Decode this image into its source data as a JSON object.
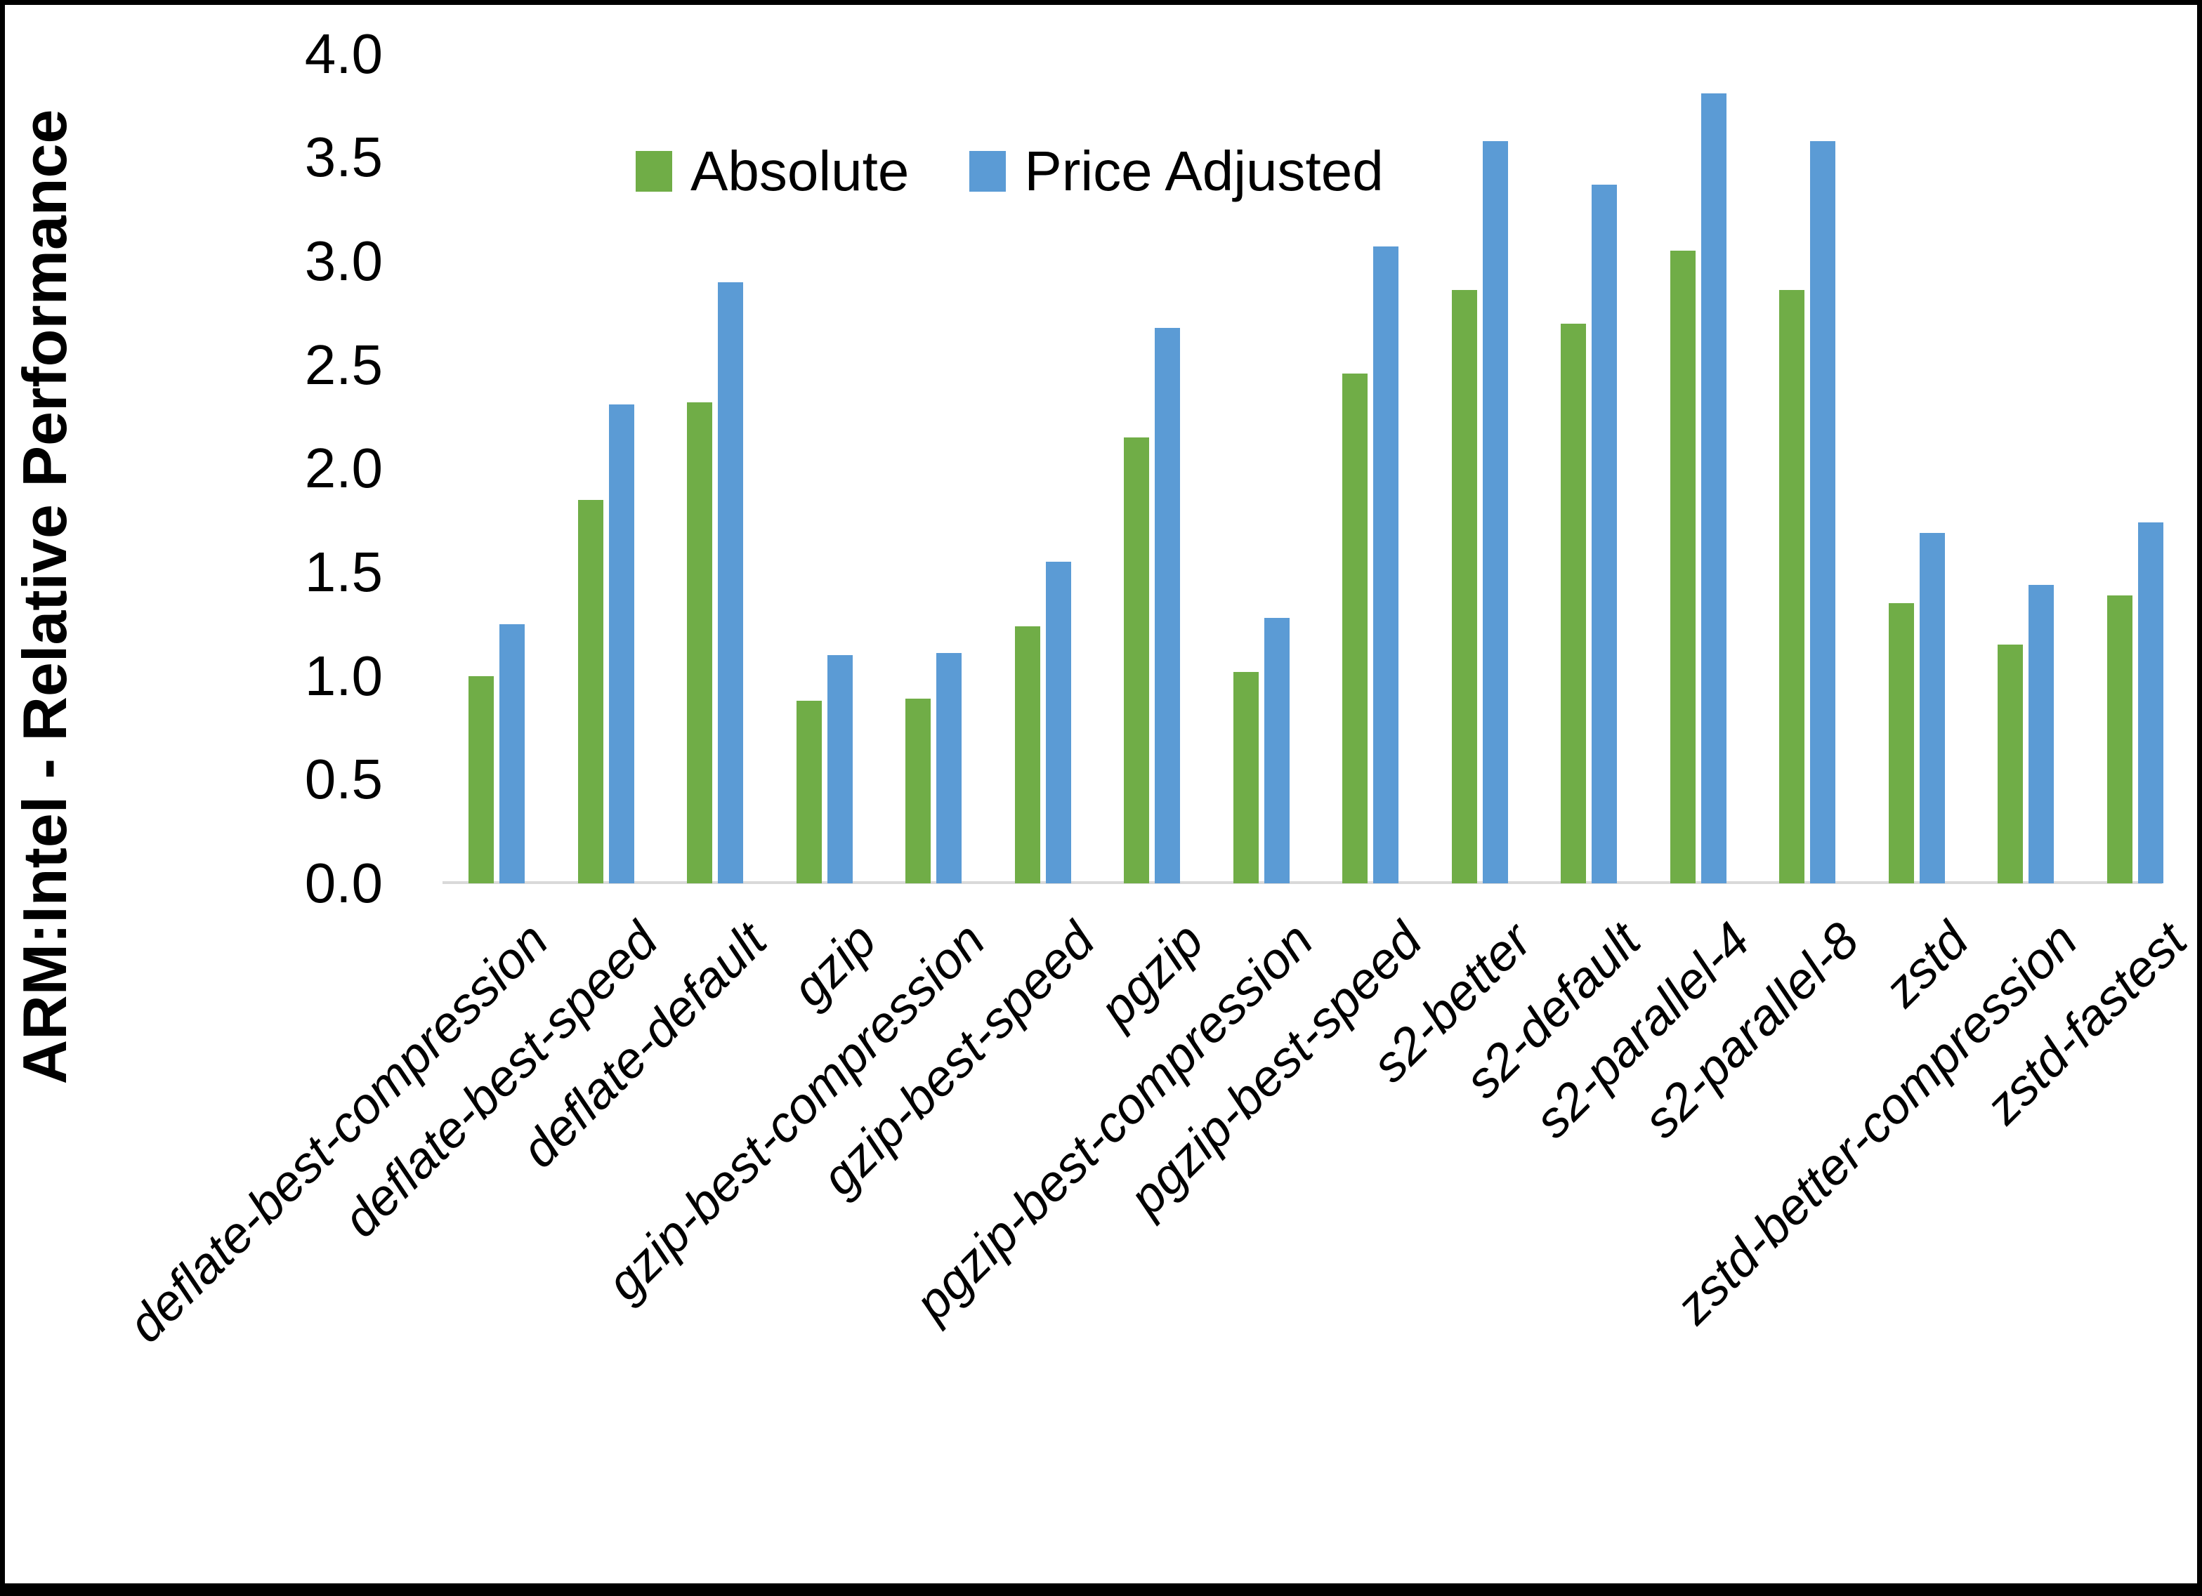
{
  "chart_data": {
    "type": "bar",
    "title": "",
    "y_axis_title": "ARM:Intel - Relative Performance",
    "categories": [
      "deflate-best-compression",
      "deflate-best-speed",
      "deflate-default",
      "gzip",
      "gzip-best-compression",
      "gzip-best-speed",
      "pgzip",
      "pgzip-best-compression",
      "pgzip-best-speed",
      "s2-better",
      "s2-default",
      "s2-parallel-4",
      "s2-parallel-8",
      "zstd",
      "zstd-better-compression",
      "zstd-fastest"
    ],
    "series": [
      {
        "name": "Absolute",
        "color": "#70AD47",
        "values": [
          1.0,
          1.85,
          2.32,
          0.88,
          0.89,
          1.24,
          2.15,
          1.02,
          2.46,
          2.86,
          2.7,
          3.05,
          2.86,
          1.35,
          1.15,
          1.39
        ]
      },
      {
        "name": "Price Adjusted",
        "color": "#5B9BD5",
        "values": [
          1.25,
          2.31,
          2.9,
          1.1,
          1.11,
          1.55,
          2.68,
          1.28,
          3.07,
          3.58,
          3.37,
          3.81,
          3.58,
          1.69,
          1.44,
          1.74
        ]
      }
    ],
    "ylim": [
      0.0,
      4.0
    ],
    "ytick_step": 0.5,
    "ytick_labels": [
      "0.0",
      "0.5",
      "1.0",
      "1.5",
      "2.0",
      "2.5",
      "3.0",
      "3.5",
      "4.0"
    ],
    "legend_position": "top",
    "grid": "off",
    "xlabel": "",
    "ylabel": "ARM:Intel - Relative Performance"
  },
  "colors": {
    "absolute_green": "#70AD47",
    "price_adjusted_blue": "#5B9BD5",
    "axis_line_gray": "#d9d9d9",
    "frame_black": "#000000",
    "text_black": "#000000"
  }
}
